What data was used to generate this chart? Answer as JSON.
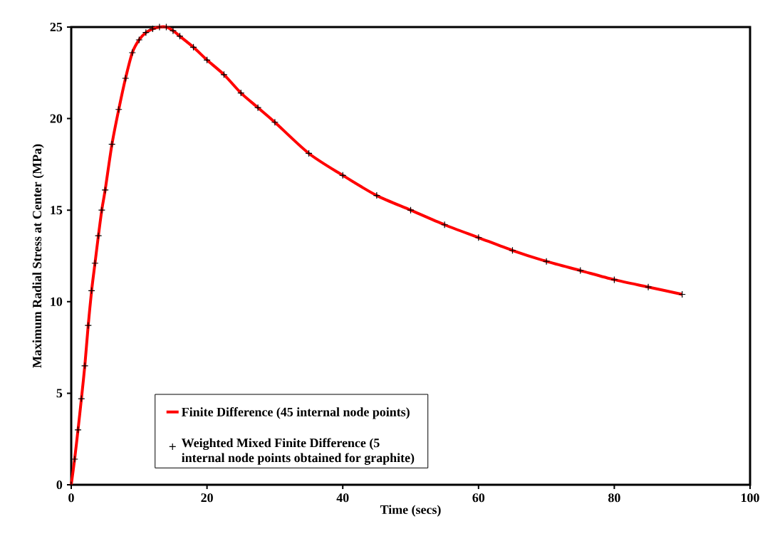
{
  "chart_data": {
    "type": "line",
    "xlabel": "Time (secs)",
    "ylabel": "Maximum Radial Stress at Center (MPa)",
    "x": [
      0,
      0.5,
      1,
      1.5,
      2,
      2.5,
      3,
      3.5,
      4,
      4.5,
      5,
      6,
      7,
      8,
      9,
      10,
      11,
      12,
      13,
      14,
      15,
      16,
      18,
      20,
      22.5,
      25,
      27.5,
      30,
      35,
      40,
      45,
      50,
      55,
      60,
      65,
      70,
      75,
      80,
      85,
      90
    ],
    "series": [
      {
        "name": "Finite Difference (45 internal node points)",
        "color": "#ff0000",
        "marker": "none",
        "values": [
          0,
          1.4,
          3.0,
          4.7,
          6.5,
          8.7,
          10.6,
          12.1,
          13.6,
          15.0,
          16.1,
          18.6,
          20.5,
          22.2,
          23.6,
          24.3,
          24.7,
          24.9,
          25.0,
          25.0,
          24.8,
          24.5,
          23.9,
          23.2,
          22.4,
          21.4,
          20.6,
          19.8,
          18.1,
          16.9,
          15.8,
          15.0,
          14.2,
          13.5,
          12.8,
          12.2,
          11.7,
          11.2,
          10.8,
          10.4
        ]
      },
      {
        "name": "Weighted Mixed Finite Difference (5 internal node points obtained for graphite)",
        "type": "scatter",
        "color": "#000000",
        "marker": "cross",
        "values": [
          0,
          1.4,
          3.0,
          4.7,
          6.5,
          8.7,
          10.6,
          12.1,
          13.6,
          15.0,
          16.1,
          18.6,
          20.5,
          22.2,
          23.6,
          24.3,
          24.7,
          24.9,
          25.0,
          25.0,
          24.8,
          24.5,
          23.9,
          23.2,
          22.4,
          21.4,
          20.6,
          19.8,
          18.1,
          16.9,
          15.8,
          15.0,
          14.2,
          13.5,
          12.8,
          12.2,
          11.7,
          11.2,
          10.8,
          10.4
        ]
      }
    ],
    "xlim": [
      0,
      100
    ],
    "xticks": [
      0,
      20,
      40,
      60,
      80,
      100
    ],
    "ylim": [
      0,
      25
    ],
    "yticks": [
      0,
      5,
      10,
      15,
      20,
      25
    ],
    "grid": false,
    "legend": "bottom left"
  }
}
